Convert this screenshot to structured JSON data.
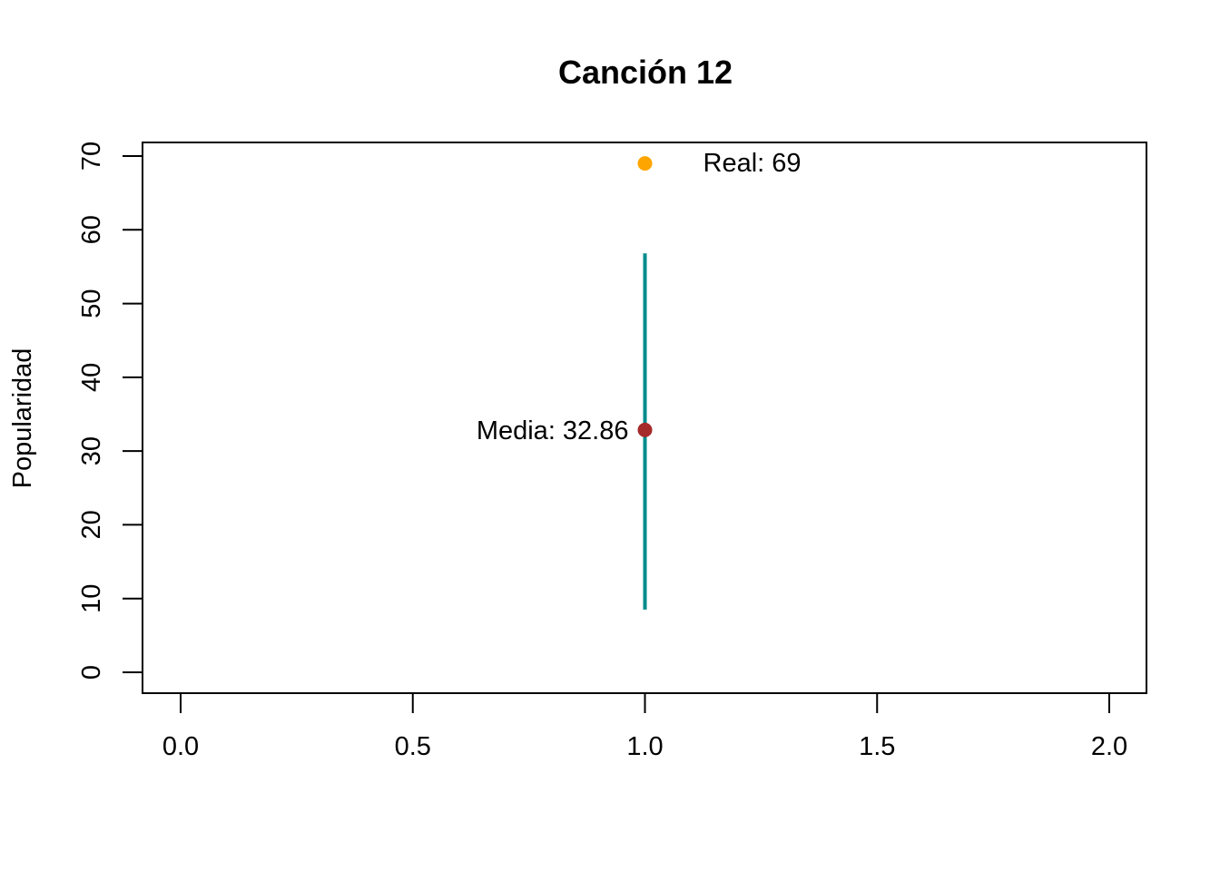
{
  "chart_data": {
    "type": "scatter",
    "title": "Canción 12",
    "xlabel": "",
    "ylabel": "Popularidad",
    "xlim": [
      0,
      2
    ],
    "ylim": [
      0,
      70
    ],
    "x_ticks": [
      "0.0",
      "0.5",
      "1.0",
      "1.5",
      "2.0"
    ],
    "y_ticks": [
      "0",
      "10",
      "20",
      "30",
      "40",
      "50",
      "60",
      "70"
    ],
    "interval": {
      "x": 1,
      "low": 8.5,
      "high": 56.8,
      "color": "#008B8B"
    },
    "mean_point": {
      "x": 1,
      "y": 32.86,
      "color": "#A52A2A",
      "label": "Media: 32.86"
    },
    "real_point": {
      "x": 1,
      "y": 69,
      "color": "#FFA500",
      "label": "Real: 69"
    },
    "grid": false
  }
}
